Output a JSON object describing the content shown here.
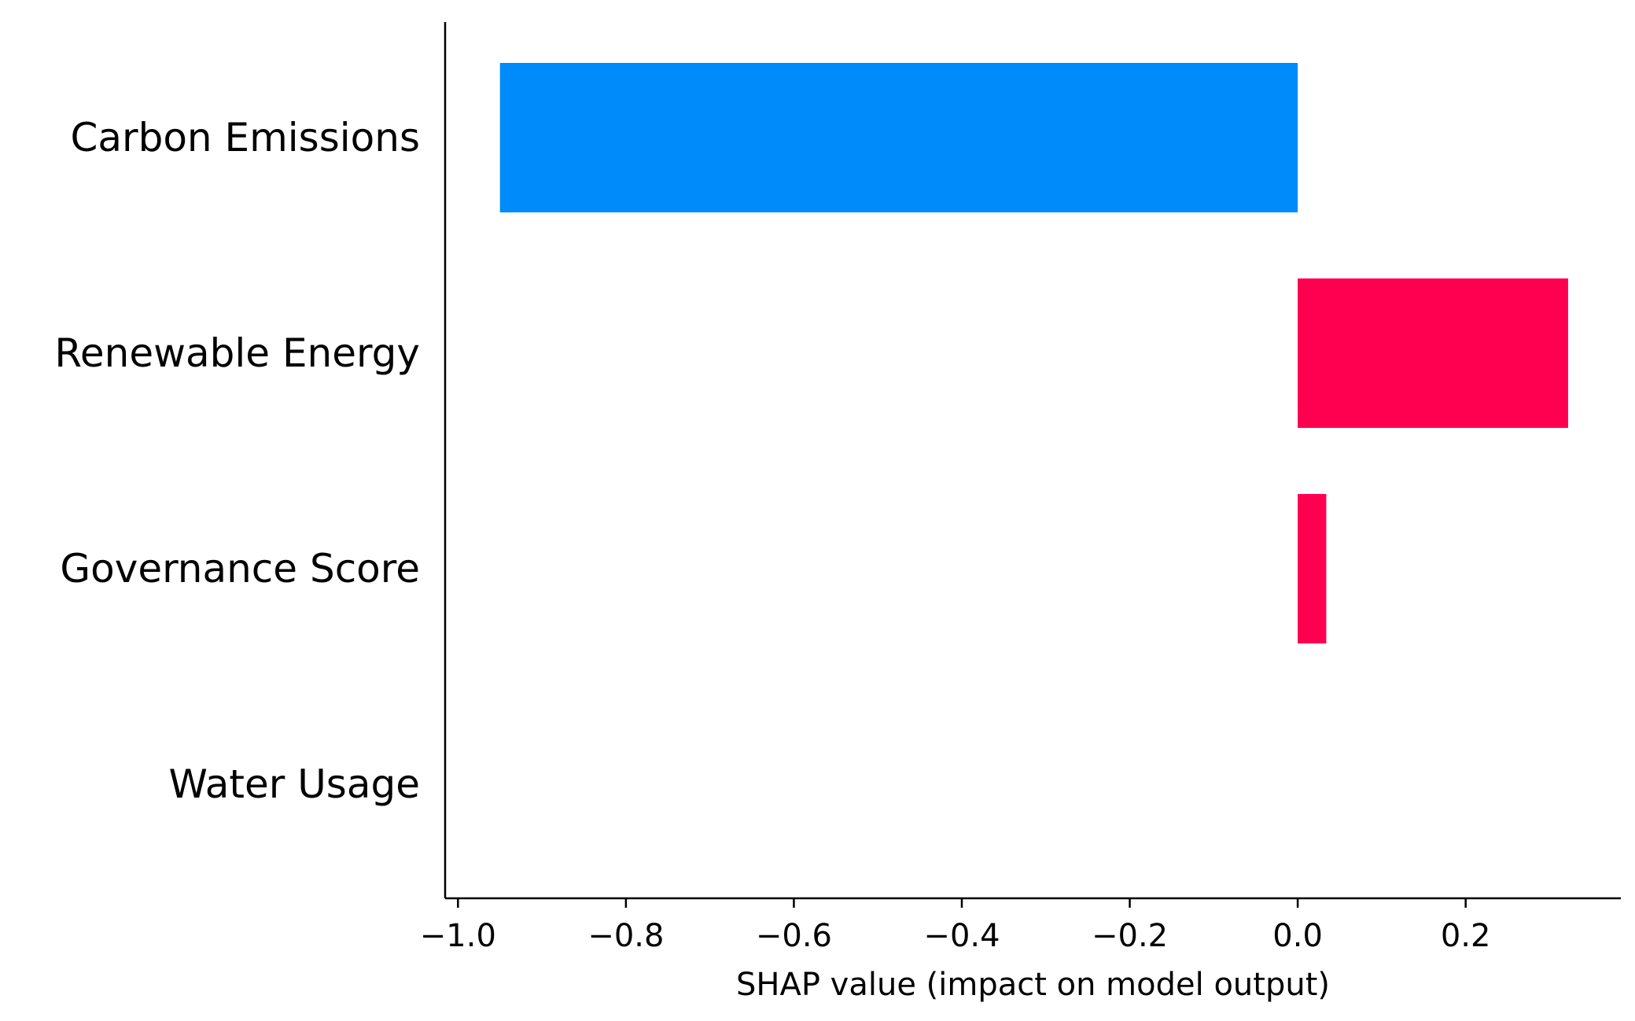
{
  "chart_data": {
    "type": "bar",
    "orientation": "horizontal",
    "categories": [
      "Carbon Emissions",
      "Renewable Energy",
      "Governance Score",
      "Water Usage"
    ],
    "values": [
      -0.95,
      0.322,
      0.034,
      0.0
    ],
    "title": "",
    "xlabel": "SHAP value (impact on model output)",
    "ylabel": "",
    "xlim": [
      -1.0153,
      0.3848
    ],
    "xticks": [
      -1.0,
      -0.8,
      -0.6,
      -0.4,
      -0.2,
      0.0,
      0.2
    ],
    "xtick_labels": [
      "−1.0",
      "−0.8",
      "−0.6",
      "−0.4",
      "−0.2",
      "0.0",
      "0.2"
    ],
    "grid": false,
    "legend": "none",
    "colors": {
      "negative": "#008bfb",
      "positive": "#ff0051",
      "axis": "#000000"
    }
  }
}
